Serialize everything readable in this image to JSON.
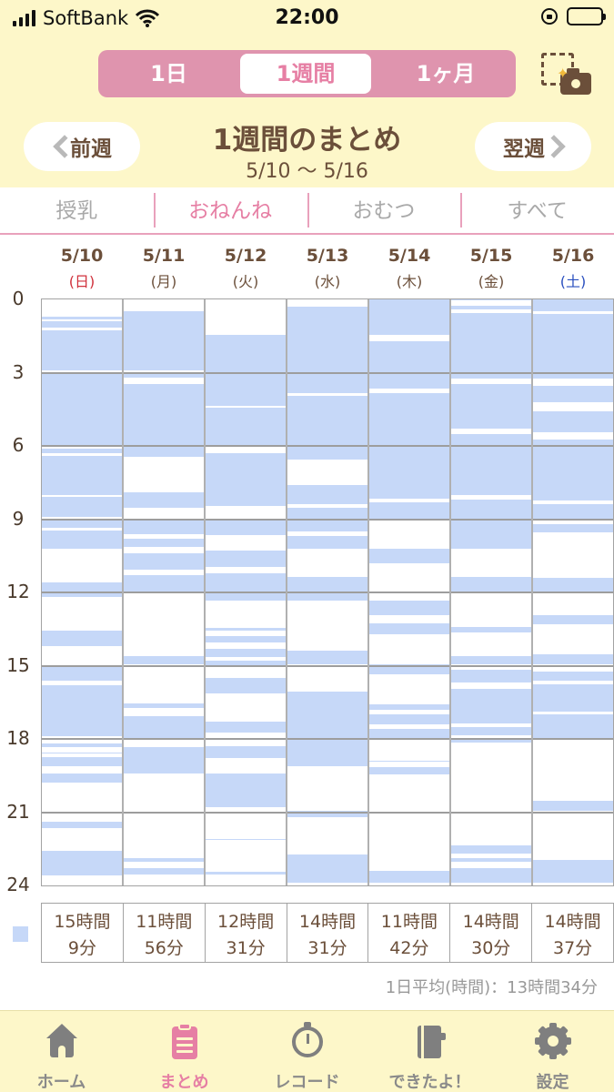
{
  "status_bar": {
    "carrier": "SoftBank",
    "time": "22:00"
  },
  "period_tabs": [
    {
      "label": "1日",
      "selected": false
    },
    {
      "label": "1週間",
      "selected": true
    },
    {
      "label": "1ヶ月",
      "selected": false
    }
  ],
  "header": {
    "prev_label": "前週",
    "next_label": "翌週",
    "title": "1週間のまとめ",
    "range": "5/10 〜 5/16"
  },
  "category_tabs": [
    {
      "label": "授乳",
      "selected": false
    },
    {
      "label": "おねんね",
      "selected": true
    },
    {
      "label": "おむつ",
      "selected": false
    },
    {
      "label": "すべて",
      "selected": false
    }
  ],
  "chart_data": {
    "type": "timeline",
    "y_ticks": [
      "0",
      "3",
      "6",
      "9",
      "12",
      "15",
      "18",
      "21",
      "24"
    ],
    "ylim": [
      0,
      24
    ],
    "color": "#c6d8f8",
    "days": [
      {
        "date": "5/10",
        "weekday": "(日)",
        "total_hours": "15時間",
        "total_minutes": "9分",
        "segments": [
          [
            0.7,
            0.82
          ],
          [
            0.9,
            1.15
          ],
          [
            1.25,
            2.9
          ],
          [
            3.0,
            6.0
          ],
          [
            6.1,
            6.3
          ],
          [
            6.4,
            8.0
          ],
          [
            8.1,
            8.9
          ],
          [
            9.0,
            9.35
          ],
          [
            9.45,
            10.2
          ],
          [
            11.6,
            11.95
          ],
          [
            12.0,
            12.2
          ],
          [
            13.55,
            14.2
          ],
          [
            15.0,
            15.6
          ],
          [
            15.8,
            17.9
          ],
          [
            18.2,
            18.35
          ],
          [
            18.55,
            18.6
          ],
          [
            18.75,
            19.1
          ],
          [
            19.4,
            19.8
          ],
          [
            21.4,
            21.65
          ],
          [
            22.6,
            23.6
          ]
        ]
      },
      {
        "date": "5/11",
        "weekday": "(月)",
        "total_hours": "11時間",
        "total_minutes": "56分",
        "segments": [
          [
            0.5,
            2.9
          ],
          [
            3.0,
            3.2
          ],
          [
            3.45,
            6.45
          ],
          [
            7.9,
            8.55
          ],
          [
            9.0,
            9.6
          ],
          [
            9.8,
            10.15
          ],
          [
            10.4,
            11.05
          ],
          [
            11.3,
            11.95
          ],
          [
            14.6,
            14.95
          ],
          [
            16.55,
            16.75
          ],
          [
            17.05,
            18.0
          ],
          [
            18.35,
            19.4
          ],
          [
            22.9,
            23.05
          ],
          [
            23.3,
            23.55
          ]
        ]
      },
      {
        "date": "5/12",
        "weekday": "(火)",
        "total_hours": "12時間",
        "total_minutes": "31分",
        "segments": [
          [
            1.45,
            3.0
          ],
          [
            3.0,
            4.35
          ],
          [
            4.45,
            5.95
          ],
          [
            6.3,
            8.45
          ],
          [
            9.0,
            9.65
          ],
          [
            10.3,
            10.95
          ],
          [
            11.2,
            11.95
          ],
          [
            12.0,
            12.35
          ],
          [
            13.45,
            13.55
          ],
          [
            13.8,
            14.05
          ],
          [
            14.3,
            14.65
          ],
          [
            14.8,
            15.0
          ],
          [
            15.5,
            16.15
          ],
          [
            17.3,
            17.75
          ],
          [
            18.3,
            18.8
          ],
          [
            19.4,
            20.8
          ],
          [
            21.0,
            21.05
          ],
          [
            22.1,
            22.15
          ],
          [
            23.45,
            23.55
          ]
        ]
      },
      {
        "date": "5/13",
        "weekday": "(水)",
        "total_hours": "14時間",
        "total_minutes": "31分",
        "segments": [
          [
            0.3,
            3.0
          ],
          [
            3.0,
            3.85
          ],
          [
            3.95,
            6.0
          ],
          [
            6.0,
            6.55
          ],
          [
            7.6,
            8.4
          ],
          [
            8.55,
            9.0
          ],
          [
            9.0,
            9.5
          ],
          [
            9.7,
            10.2
          ],
          [
            11.35,
            12.0
          ],
          [
            12.0,
            12.35
          ],
          [
            14.4,
            14.95
          ],
          [
            16.05,
            18.0
          ],
          [
            18.0,
            19.1
          ],
          [
            20.95,
            21.2
          ],
          [
            22.75,
            23.9
          ]
        ]
      },
      {
        "date": "5/14",
        "weekday": "(木)",
        "total_hours": "11時間",
        "total_minutes": "42分",
        "segments": [
          [
            0.0,
            1.45
          ],
          [
            1.7,
            3.0
          ],
          [
            3.0,
            3.65
          ],
          [
            3.85,
            6.0
          ],
          [
            6.0,
            8.15
          ],
          [
            8.3,
            9.0
          ],
          [
            10.2,
            10.8
          ],
          [
            12.35,
            12.95
          ],
          [
            13.25,
            13.7
          ],
          [
            14.95,
            15.35
          ],
          [
            16.6,
            16.8
          ],
          [
            17.0,
            17.4
          ],
          [
            17.6,
            18.0
          ],
          [
            18.9,
            18.95
          ],
          [
            19.15,
            19.45
          ],
          [
            23.4,
            23.9
          ]
        ]
      },
      {
        "date": "5/15",
        "weekday": "(金)",
        "total_hours": "14時間",
        "total_minutes": "30分",
        "segments": [
          [
            0.0,
            0.05
          ],
          [
            0.25,
            0.4
          ],
          [
            0.55,
            3.0
          ],
          [
            3.0,
            3.25
          ],
          [
            3.45,
            5.3
          ],
          [
            5.5,
            6.0
          ],
          [
            6.0,
            8.0
          ],
          [
            8.2,
            10.2
          ],
          [
            11.35,
            11.95
          ],
          [
            13.4,
            13.65
          ],
          [
            14.6,
            14.95
          ],
          [
            15.15,
            15.7
          ],
          [
            15.95,
            17.35
          ],
          [
            17.5,
            17.85
          ],
          [
            18.0,
            18.15
          ],
          [
            22.35,
            22.7
          ],
          [
            22.9,
            23.05
          ],
          [
            23.3,
            23.9
          ]
        ]
      },
      {
        "date": "5/16",
        "weekday": "(土)",
        "total_hours": "14時間",
        "total_minutes": "37分",
        "segments": [
          [
            0.0,
            0.5
          ],
          [
            0.6,
            3.0
          ],
          [
            3.0,
            3.25
          ],
          [
            3.55,
            4.2
          ],
          [
            4.6,
            5.45
          ],
          [
            5.75,
            6.0
          ],
          [
            6.0,
            8.25
          ],
          [
            8.4,
            9.0
          ],
          [
            9.2,
            9.55
          ],
          [
            11.4,
            11.95
          ],
          [
            12.95,
            13.3
          ],
          [
            14.55,
            14.95
          ],
          [
            15.25,
            15.6
          ],
          [
            15.75,
            16.9
          ],
          [
            17.0,
            17.95
          ],
          [
            20.55,
            20.95
          ],
          [
            22.95,
            23.9
          ]
        ]
      }
    ],
    "legend_color": "#c6d8f8"
  },
  "average": "1日平均(時間)：13時間34分",
  "bottom_nav": [
    {
      "label": "ホーム",
      "icon": "home-icon",
      "active": false
    },
    {
      "label": "まとめ",
      "icon": "clipboard-icon",
      "active": true
    },
    {
      "label": "レコード",
      "icon": "timer-icon",
      "active": false
    },
    {
      "label": "できたよ！",
      "icon": "notebook-icon",
      "active": false
    },
    {
      "label": "設定",
      "icon": "gear-icon",
      "active": false
    }
  ]
}
